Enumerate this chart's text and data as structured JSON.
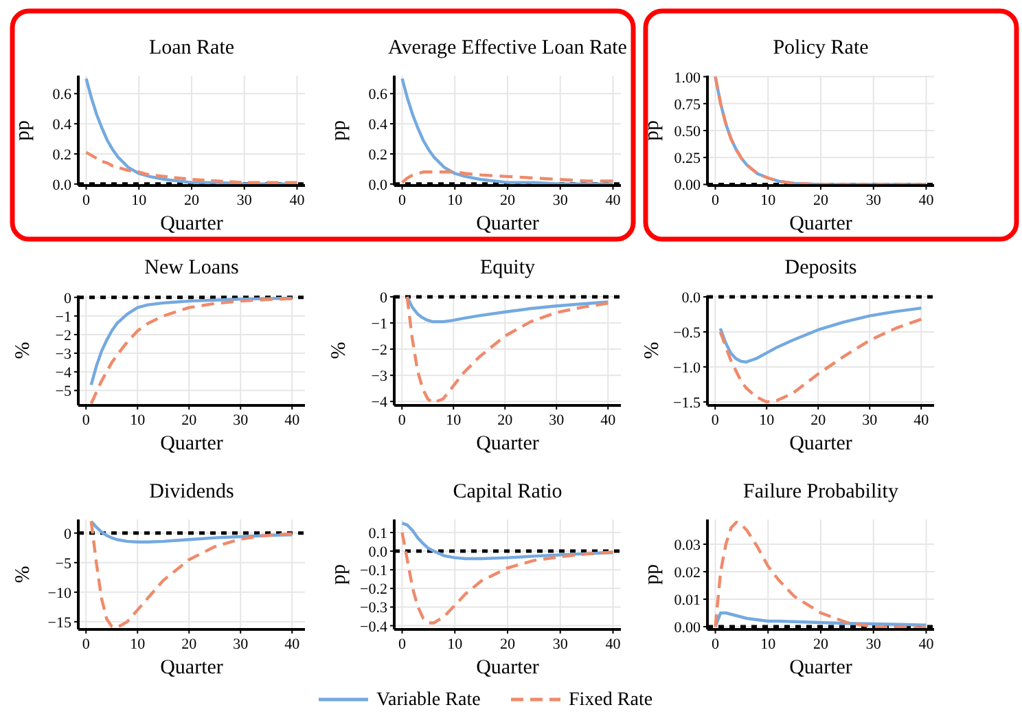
{
  "chart_data": [
    {
      "type": "line",
      "title": "Loan Rate",
      "xlabel": "Quarter",
      "ylabel": "pp",
      "legend": "bottom",
      "x": [
        0,
        1,
        2,
        3,
        4,
        5,
        6,
        8,
        10,
        12,
        15,
        20,
        25,
        30,
        35,
        40
      ],
      "xlim": [
        -1.5,
        41.5
      ],
      "xticks": [
        0,
        10,
        20,
        30,
        40
      ],
      "ylim": [
        -0.01,
        0.72
      ],
      "yticks": [
        {
          "value": 0,
          "label": "0.0"
        },
        {
          "value": 0.2,
          "label": "0.2"
        },
        {
          "value": 0.4,
          "label": "0.4"
        },
        {
          "value": 0.6,
          "label": "0.6"
        }
      ],
      "grid": true,
      "ref_lines": [
        {
          "axis": "y",
          "value": 0,
          "color": "#000000",
          "line_style": "dashed"
        }
      ],
      "series": [
        {
          "name": "Variable Rate",
          "color": "#74a9e0",
          "line_style": "solid",
          "values": [
            0.7,
            0.57,
            0.46,
            0.37,
            0.29,
            0.23,
            0.18,
            0.11,
            0.07,
            0.05,
            0.03,
            0.01,
            0.01,
            0,
            0,
            0
          ]
        },
        {
          "name": "Fixed Rate",
          "color": "#ef8a6a",
          "line_style": "dashed",
          "values": [
            0.21,
            0.19,
            0.17,
            0.15,
            0.14,
            0.12,
            0.11,
            0.09,
            0.08,
            0.06,
            0.05,
            0.03,
            0.02,
            0.01,
            0.01,
            0.01
          ]
        }
      ]
    },
    {
      "type": "line",
      "title": "Average Effective Loan Rate",
      "xlabel": "Quarter",
      "ylabel": "pp",
      "x": [
        0,
        1,
        2,
        3,
        4,
        5,
        6,
        8,
        10,
        12,
        15,
        20,
        25,
        30,
        35,
        40
      ],
      "xlim": [
        -1.5,
        41.5
      ],
      "xticks": [
        0,
        10,
        20,
        30,
        40
      ],
      "ylim": [
        -0.01,
        0.72
      ],
      "yticks": [
        {
          "value": 0,
          "label": "0.0"
        },
        {
          "value": 0.2,
          "label": "0.2"
        },
        {
          "value": 0.4,
          "label": "0.4"
        },
        {
          "value": 0.6,
          "label": "0.6"
        }
      ],
      "grid": true,
      "ref_lines": [
        {
          "axis": "y",
          "value": 0,
          "color": "#000000",
          "line_style": "dashed"
        }
      ],
      "series": [
        {
          "color": "#74a9e0",
          "line_style": "solid",
          "values": [
            0.7,
            0.57,
            0.46,
            0.37,
            0.29,
            0.23,
            0.18,
            0.11,
            0.07,
            0.05,
            0.03,
            0.01,
            0.01,
            0,
            0,
            0
          ]
        },
        {
          "color": "#ef8a6a",
          "line_style": "dashed",
          "values": [
            0.01,
            0.04,
            0.06,
            0.07,
            0.08,
            0.08,
            0.08,
            0.08,
            0.08,
            0.07,
            0.06,
            0.05,
            0.04,
            0.03,
            0.02,
            0.02
          ]
        }
      ]
    },
    {
      "type": "line",
      "title": "Policy Rate",
      "xlabel": "Quarter",
      "ylabel": "pp",
      "x": [
        0,
        1,
        2,
        3,
        4,
        5,
        6,
        8,
        10,
        12,
        15,
        20,
        25,
        30,
        35,
        40
      ],
      "xlim": [
        -1.5,
        41.5
      ],
      "xticks": [
        0,
        10,
        20,
        30,
        40
      ],
      "ylim": [
        -0.01,
        1.01
      ],
      "yticks": [
        {
          "value": 0,
          "label": "0.00"
        },
        {
          "value": 0.25,
          "label": "0.25"
        },
        {
          "value": 0.5,
          "label": "0.50"
        },
        {
          "value": 0.75,
          "label": "0.75"
        },
        {
          "value": 1,
          "label": "1.00"
        }
      ],
      "grid": true,
      "ref_lines": [
        {
          "axis": "y",
          "value": 0,
          "color": "#000000",
          "line_style": "dashed"
        }
      ],
      "series": [
        {
          "color": "#74a9e0",
          "line_style": "solid",
          "values": [
            1,
            0.75,
            0.56,
            0.42,
            0.32,
            0.24,
            0.18,
            0.1,
            0.06,
            0.03,
            0.01,
            0,
            0,
            0,
            0,
            0
          ]
        },
        {
          "color": "#ef8a6a",
          "line_style": "dashed",
          "values": [
            1,
            0.75,
            0.56,
            0.42,
            0.32,
            0.24,
            0.18,
            0.1,
            0.06,
            0.03,
            0.01,
            0,
            0,
            0,
            0,
            0
          ]
        }
      ]
    },
    {
      "type": "line",
      "title": "New Loans",
      "xlabel": "Quarter",
      "ylabel": "%",
      "x": [
        1,
        2,
        3,
        4,
        5,
        6,
        8,
        10,
        12,
        15,
        20,
        25,
        30,
        35,
        40
      ],
      "xlim": [
        -1.5,
        42.5
      ],
      "xticks": [
        0,
        10,
        20,
        30,
        40
      ],
      "ylim": [
        -5.8,
        0.1
      ],
      "yticks": [
        {
          "value": -5,
          "label": "−5"
        },
        {
          "value": -4,
          "label": "−4"
        },
        {
          "value": -3,
          "label": "−3"
        },
        {
          "value": -2,
          "label": "−2"
        },
        {
          "value": -1,
          "label": "−1"
        },
        {
          "value": 0,
          "label": "0"
        }
      ],
      "grid": true,
      "ref_lines": [
        {
          "axis": "y",
          "value": 0,
          "color": "#000000",
          "line_style": "dashed"
        }
      ],
      "series": [
        {
          "color": "#74a9e0",
          "line_style": "solid",
          "values": [
            -4.7,
            -3.7,
            -2.9,
            -2.3,
            -1.8,
            -1.4,
            -0.9,
            -0.55,
            -0.4,
            -0.3,
            -0.2,
            -0.15,
            -0.1,
            -0.07,
            -0.05
          ]
        },
        {
          "color": "#ef8a6a",
          "line_style": "dashed",
          "values": [
            -5.7,
            -5.1,
            -4.5,
            -4,
            -3.5,
            -3.1,
            -2.4,
            -1.8,
            -1.4,
            -1,
            -0.55,
            -0.33,
            -0.2,
            -0.12,
            -0.07
          ]
        }
      ]
    },
    {
      "type": "line",
      "title": "Equity",
      "xlabel": "Quarter",
      "ylabel": "%",
      "x": [
        1,
        2,
        3,
        4,
        5,
        6,
        8,
        10,
        12,
        15,
        20,
        25,
        30,
        35,
        40
      ],
      "xlim": [
        -1.5,
        42.5
      ],
      "xticks": [
        0,
        10,
        20,
        30,
        40
      ],
      "ylim": [
        -4.15,
        0.05
      ],
      "yticks": [
        {
          "value": -4,
          "label": "−4"
        },
        {
          "value": -3,
          "label": "−3"
        },
        {
          "value": -2,
          "label": "−2"
        },
        {
          "value": -1,
          "label": "−1"
        },
        {
          "value": 0,
          "label": "0"
        }
      ],
      "grid": true,
      "ref_lines": [
        {
          "axis": "y",
          "value": 0,
          "color": "#000000",
          "line_style": "dashed"
        }
      ],
      "series": [
        {
          "color": "#74a9e0",
          "line_style": "solid",
          "values": [
            0,
            -0.4,
            -0.65,
            -0.8,
            -0.9,
            -0.95,
            -0.95,
            -0.9,
            -0.82,
            -0.72,
            -0.58,
            -0.45,
            -0.35,
            -0.27,
            -0.2
          ]
        },
        {
          "color": "#ef8a6a",
          "line_style": "dashed",
          "values": [
            0,
            -1.6,
            -2.8,
            -3.5,
            -3.9,
            -4.05,
            -3.9,
            -3.4,
            -2.9,
            -2.3,
            -1.5,
            -0.95,
            -0.6,
            -0.4,
            -0.25
          ]
        }
      ]
    },
    {
      "type": "line",
      "title": "Deposits",
      "xlabel": "Quarter",
      "ylabel": "%",
      "x": [
        1,
        2,
        3,
        4,
        5,
        6,
        8,
        10,
        12,
        15,
        20,
        25,
        30,
        35,
        40
      ],
      "xlim": [
        -1.5,
        42.5
      ],
      "xticks": [
        0,
        10,
        20,
        30,
        40
      ],
      "ylim": [
        -1.55,
        0.02
      ],
      "yticks": [
        {
          "value": -1.5,
          "label": "−1.5"
        },
        {
          "value": -1,
          "label": "−1.0"
        },
        {
          "value": -0.5,
          "label": "−0.5"
        },
        {
          "value": 0,
          "label": "0.0"
        }
      ],
      "grid": true,
      "ref_lines": [
        {
          "axis": "y",
          "value": 0,
          "color": "#000000",
          "line_style": "dashed"
        }
      ],
      "series": [
        {
          "color": "#74a9e0",
          "line_style": "solid",
          "values": [
            -0.45,
            -0.65,
            -0.8,
            -0.88,
            -0.92,
            -0.93,
            -0.88,
            -0.8,
            -0.72,
            -0.62,
            -0.47,
            -0.36,
            -0.27,
            -0.21,
            -0.16
          ]
        },
        {
          "color": "#ef8a6a",
          "line_style": "dashed",
          "values": [
            -0.5,
            -0.7,
            -0.9,
            -1.05,
            -1.2,
            -1.3,
            -1.43,
            -1.5,
            -1.48,
            -1.38,
            -1.1,
            -0.85,
            -0.62,
            -0.45,
            -0.32
          ]
        }
      ]
    },
    {
      "type": "line",
      "title": "Dividends",
      "xlabel": "Quarter",
      "ylabel": "%",
      "x": [
        1,
        2,
        3,
        4,
        5,
        6,
        8,
        10,
        12,
        15,
        20,
        25,
        30,
        35,
        40
      ],
      "xlim": [
        -1.5,
        42.5
      ],
      "xticks": [
        0,
        10,
        20,
        30,
        40
      ],
      "ylim": [
        -16.3,
        2.3
      ],
      "yticks": [
        {
          "value": -15,
          "label": "−15"
        },
        {
          "value": -10,
          "label": "−10"
        },
        {
          "value": -5,
          "label": "−5"
        },
        {
          "value": 0,
          "label": "0"
        }
      ],
      "grid": true,
      "ref_lines": [
        {
          "axis": "y",
          "value": 0,
          "color": "#000000",
          "line_style": "dashed"
        }
      ],
      "series": [
        {
          "color": "#74a9e0",
          "line_style": "solid",
          "values": [
            2,
            1,
            0.2,
            -0.4,
            -0.8,
            -1.1,
            -1.4,
            -1.5,
            -1.5,
            -1.4,
            -1.1,
            -0.8,
            -0.6,
            -0.4,
            -0.3
          ]
        },
        {
          "color": "#ef8a6a",
          "line_style": "dashed",
          "values": [
            2,
            -5,
            -11,
            -14.5,
            -15.8,
            -16,
            -15,
            -13,
            -11,
            -8,
            -4.5,
            -2.3,
            -1,
            -0.4,
            -0.1
          ]
        }
      ]
    },
    {
      "type": "line",
      "title": "Capital Ratio",
      "xlabel": "Quarter",
      "ylabel": "pp",
      "x": [
        0,
        1,
        2,
        3,
        4,
        5,
        6,
        8,
        10,
        12,
        15,
        20,
        25,
        30,
        35,
        40
      ],
      "xlim": [
        -1.5,
        41.5
      ],
      "xticks": [
        0,
        10,
        20,
        30,
        40
      ],
      "ylim": [
        -0.42,
        0.17
      ],
      "yticks": [
        {
          "value": -0.4,
          "label": "−0.4"
        },
        {
          "value": -0.3,
          "label": "−0.3"
        },
        {
          "value": -0.2,
          "label": "−0.2"
        },
        {
          "value": -0.1,
          "label": "−0.1"
        },
        {
          "value": 0,
          "label": "0.0"
        },
        {
          "value": 0.1,
          "label": "0.1"
        }
      ],
      "grid": true,
      "ref_lines": [
        {
          "axis": "y",
          "value": 0,
          "color": "#000000",
          "line_style": "dashed"
        }
      ],
      "series": [
        {
          "color": "#74a9e0",
          "line_style": "solid",
          "values": [
            0.15,
            0.14,
            0.11,
            0.07,
            0.04,
            0.015,
            0,
            -0.025,
            -0.035,
            -0.04,
            -0.04,
            -0.035,
            -0.027,
            -0.02,
            -0.013,
            -0.008
          ]
        },
        {
          "color": "#ef8a6a",
          "line_style": "dashed",
          "values": [
            0.1,
            -0.05,
            -0.2,
            -0.3,
            -0.36,
            -0.385,
            -0.385,
            -0.35,
            -0.29,
            -0.23,
            -0.16,
            -0.09,
            -0.05,
            -0.03,
            -0.015,
            -0.005
          ]
        }
      ]
    },
    {
      "type": "line",
      "title": "Failure Probability",
      "xlabel": "Quarter",
      "ylabel": "pp",
      "x": [
        0,
        1,
        2,
        3,
        4,
        5,
        6,
        8,
        10,
        12,
        15,
        20,
        25,
        30,
        35,
        40
      ],
      "xlim": [
        -1.5,
        41.5
      ],
      "xticks": [
        0,
        10,
        20,
        30,
        40
      ],
      "ylim": [
        -0.001,
        0.039
      ],
      "yticks": [
        {
          "value": 0,
          "label": "0.00"
        },
        {
          "value": 0.01,
          "label": "0.01"
        },
        {
          "value": 0.02,
          "label": "0.02"
        },
        {
          "value": 0.03,
          "label": "0.03"
        }
      ],
      "grid": true,
      "ref_lines": [
        {
          "axis": "y",
          "value": 0,
          "color": "#000000",
          "line_style": "dashed"
        }
      ],
      "series": [
        {
          "color": "#74a9e0",
          "line_style": "solid",
          "values": [
            0,
            0.005,
            0.005,
            0.0045,
            0.004,
            0.0035,
            0.003,
            0.0025,
            0.002,
            0.002,
            0.0018,
            0.0015,
            0.0012,
            0.001,
            0.0008,
            0.0006
          ]
        },
        {
          "color": "#ef8a6a",
          "line_style": "dashed",
          "values": [
            0,
            0.02,
            0.03,
            0.036,
            0.038,
            0.037,
            0.035,
            0.029,
            0.022,
            0.017,
            0.011,
            0.005,
            0.0015,
            0,
            -0.0003,
            -0.0004
          ]
        }
      ]
    }
  ]
}
